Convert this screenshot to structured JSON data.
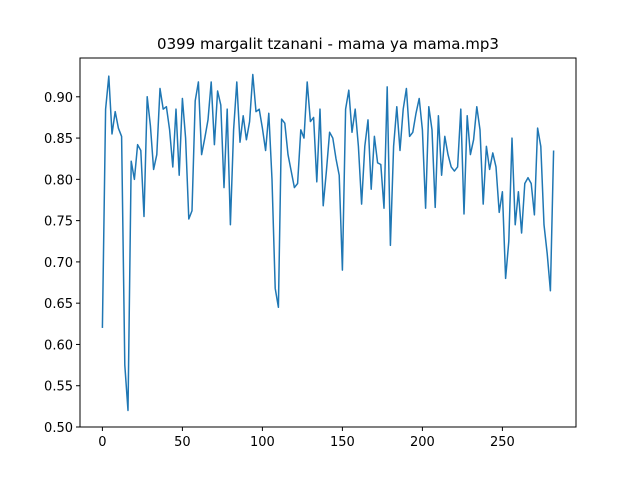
{
  "chart_data": {
    "type": "line",
    "title": "0399 margalit tzanani - mama ya mama.mp3",
    "x": [
      0,
      2,
      4,
      6,
      8,
      10,
      12,
      14,
      16,
      18,
      20,
      22,
      24,
      26,
      28,
      30,
      32,
      34,
      36,
      38,
      40,
      42,
      44,
      46,
      48,
      50,
      52,
      54,
      56,
      58,
      60,
      62,
      64,
      66,
      68,
      70,
      72,
      74,
      76,
      78,
      80,
      82,
      84,
      86,
      88,
      90,
      92,
      94,
      96,
      98,
      100,
      102,
      104,
      106,
      108,
      110,
      112,
      114,
      116,
      118,
      120,
      122,
      124,
      126,
      128,
      130,
      132,
      134,
      136,
      138,
      140,
      142,
      144,
      146,
      148,
      150,
      152,
      154,
      156,
      158,
      160,
      162,
      164,
      166,
      168,
      170,
      172,
      174,
      176,
      178,
      180,
      182,
      184,
      186,
      188,
      190,
      192,
      194,
      196,
      198,
      200,
      202,
      204,
      206,
      208,
      210,
      212,
      214,
      216,
      218,
      220,
      222,
      224,
      226,
      228,
      230,
      232,
      234,
      236,
      238,
      240,
      242,
      244,
      246,
      248,
      250,
      252,
      254,
      256,
      258,
      260,
      262,
      264,
      266,
      268,
      270,
      272,
      274,
      276,
      278,
      280,
      282
    ],
    "series": [
      {
        "color": "#1f77b4",
        "values": [
          0.62,
          0.885,
          0.925,
          0.855,
          0.882,
          0.862,
          0.852,
          0.575,
          0.52,
          0.822,
          0.8,
          0.842,
          0.835,
          0.755,
          0.9,
          0.865,
          0.812,
          0.83,
          0.91,
          0.885,
          0.888,
          0.86,
          0.815,
          0.885,
          0.805,
          0.898,
          0.85,
          0.752,
          0.762,
          0.895,
          0.918,
          0.83,
          0.85,
          0.872,
          0.918,
          0.842,
          0.907,
          0.89,
          0.79,
          0.885,
          0.745,
          0.86,
          0.918,
          0.845,
          0.877,
          0.848,
          0.87,
          0.927,
          0.882,
          0.885,
          0.862,
          0.835,
          0.88,
          0.8,
          0.668,
          0.645,
          0.873,
          0.868,
          0.83,
          0.81,
          0.79,
          0.795,
          0.86,
          0.85,
          0.918,
          0.87,
          0.875,
          0.797,
          0.885,
          0.768,
          0.81,
          0.857,
          0.85,
          0.825,
          0.805,
          0.69,
          0.885,
          0.908,
          0.857,
          0.885,
          0.84,
          0.77,
          0.84,
          0.872,
          0.788,
          0.852,
          0.82,
          0.818,
          0.765,
          0.912,
          0.72,
          0.84,
          0.888,
          0.835,
          0.885,
          0.91,
          0.852,
          0.857,
          0.88,
          0.898,
          0.86,
          0.765,
          0.888,
          0.86,
          0.766,
          0.877,
          0.805,
          0.852,
          0.83,
          0.815,
          0.81,
          0.815,
          0.885,
          0.758,
          0.877,
          0.83,
          0.848,
          0.888,
          0.86,
          0.77,
          0.84,
          0.812,
          0.832,
          0.815,
          0.76,
          0.785,
          0.68,
          0.725,
          0.85,
          0.745,
          0.785,
          0.735,
          0.795,
          0.802,
          0.795,
          0.757,
          0.862,
          0.84,
          0.745,
          0.71,
          0.665,
          0.835
        ]
      }
    ],
    "xlim": [
      -14,
      296
    ],
    "xticks": [
      0,
      50,
      100,
      150,
      200,
      250
    ],
    "ylim": [
      0.5,
      0.947
    ],
    "yticks": [
      {
        "value": 0.5,
        "label": "0.50"
      },
      {
        "value": 0.55,
        "label": "0.55"
      },
      {
        "value": 0.6,
        "label": "0.60"
      },
      {
        "value": 0.65,
        "label": "0.65"
      },
      {
        "value": 0.7,
        "label": "0.70"
      },
      {
        "value": 0.75,
        "label": "0.75"
      },
      {
        "value": 0.8,
        "label": "0.80"
      },
      {
        "value": 0.85,
        "label": "0.85"
      },
      {
        "value": 0.9,
        "label": "0.90"
      }
    ]
  }
}
